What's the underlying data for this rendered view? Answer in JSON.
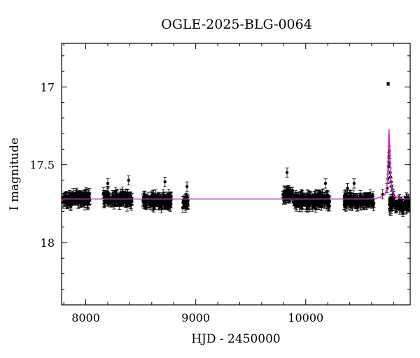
{
  "chart_data": {
    "type": "scatter",
    "title": "OGLE-2025-BLG-0064",
    "xlabel": "HJD - 2450000",
    "ylabel": "I magnitude",
    "xlim": [
      7780,
      10950
    ],
    "ylim": [
      18.4,
      16.72
    ],
    "y_inverted": true,
    "xticks": [
      8000,
      9000,
      10000
    ],
    "xtick_labels": [
      "8000",
      "9000",
      "10000"
    ],
    "yticks": [
      17,
      17.5,
      18
    ],
    "ytick_labels": [
      "17",
      "17.5",
      "18"
    ],
    "grid": false,
    "legend": "none",
    "colors": {
      "points": "#000000",
      "model": "#cc33cc"
    },
    "baseline_mag": 17.72,
    "seasons": [
      {
        "x_start": 7790,
        "x_end": 8040,
        "mean": 17.72
      },
      {
        "x_start": 8160,
        "x_end": 8420,
        "mean": 17.72
      },
      {
        "x_start": 8520,
        "x_end": 8780,
        "mean": 17.73
      },
      {
        "x_start": 8880,
        "x_end": 8930,
        "mean": 17.74
      },
      {
        "x_start": 9790,
        "x_end": 9880,
        "mean": 17.69
      },
      {
        "x_start": 9890,
        "x_end": 10220,
        "mean": 17.73
      },
      {
        "x_start": 10350,
        "x_end": 10620,
        "mean": 17.73
      },
      {
        "x_start": 10760,
        "x_end": 10940,
        "mean": 17.76
      }
    ],
    "series": [
      {
        "type": "points_with_errorbars",
        "points": [
          [
            8200,
            17.62
          ],
          [
            8390,
            17.6
          ],
          [
            8720,
            17.61
          ],
          [
            8920,
            17.64
          ],
          [
            9830,
            17.55
          ],
          [
            10180,
            17.62
          ],
          [
            10380,
            17.65
          ],
          [
            10440,
            17.62
          ],
          [
            10740,
            17.65
          ],
          [
            10700,
            17.69
          ],
          [
            10748,
            17.59
          ],
          [
            10752,
            17.51
          ],
          [
            10756,
            17.45
          ],
          [
            10760,
            17.41
          ],
          [
            10764,
            17.49
          ],
          [
            10768,
            17.55
          ],
          [
            10772,
            17.58
          ],
          [
            10776,
            17.61
          ],
          [
            10780,
            17.64
          ],
          [
            10786,
            17.66
          ],
          [
            10794,
            17.69
          ],
          [
            10802,
            17.7
          ],
          [
            10750,
            16.98
          ]
        ],
        "typical_error": 0.03
      },
      {
        "type": "model_line",
        "x": [
          7780,
          10600,
          10680,
          10720,
          10735,
          10745,
          10752,
          10757,
          10762,
          10768,
          10775,
          10785,
          10800,
          10830,
          10900,
          10950
        ],
        "y": [
          17.72,
          17.72,
          17.71,
          17.69,
          17.66,
          17.58,
          17.38,
          17.27,
          17.35,
          17.5,
          17.6,
          17.66,
          17.7,
          17.71,
          17.72,
          17.72
        ]
      }
    ]
  }
}
